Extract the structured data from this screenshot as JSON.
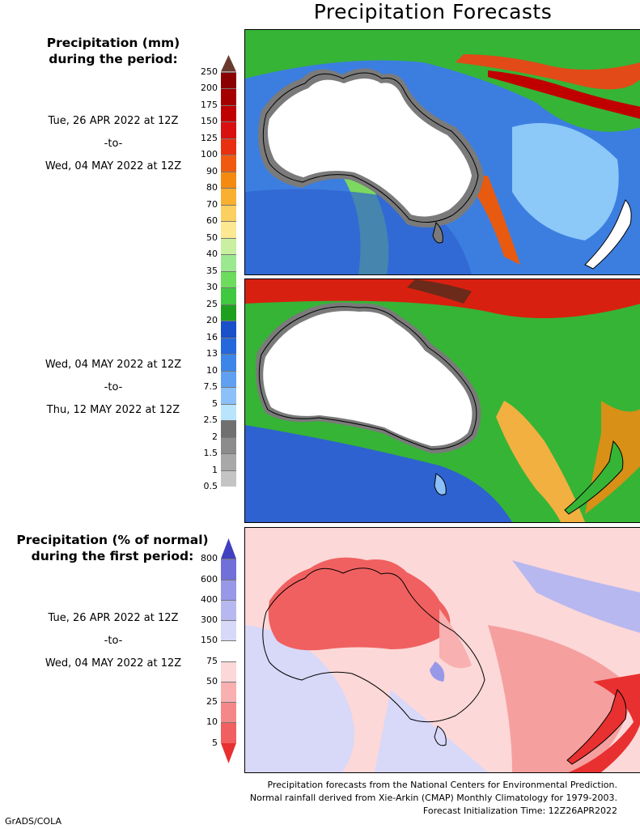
{
  "title": "Precipitation Forecasts",
  "panel_precip": {
    "heading_line1": "Precipitation (mm)",
    "heading_line2": "during the period:",
    "colorbar_labels": [
      "250",
      "200",
      "175",
      "150",
      "125",
      "100",
      "90",
      "80",
      "70",
      "60",
      "50",
      "40",
      "35",
      "30",
      "25",
      "20",
      "16",
      "13",
      "10",
      "7.5",
      "5",
      "2.5",
      "2",
      "1.5",
      "1",
      "0.5"
    ],
    "colorbar_colors": [
      "#6b3a2e",
      "#8b0000",
      "#a50000",
      "#c00000",
      "#d81010",
      "#e83010",
      "#f05a10",
      "#f58a10",
      "#f9b030",
      "#fbd060",
      "#fbe890",
      "#c8f0a0",
      "#9ce890",
      "#6cdc5c",
      "#40c840",
      "#1ea01e",
      "#1a50c8",
      "#2468dc",
      "#3c86e8",
      "#60a0f0",
      "#8cc0f8",
      "#b8e4fc",
      "#707070",
      "#8c8c8c",
      "#a8a8a8",
      "#c4c4c4",
      "#ffffff"
    ]
  },
  "period1": {
    "start": "Tue, 26 APR 2022 at 12Z",
    "sep": "-to-",
    "end": "Wed, 04 MAY 2022 at 12Z"
  },
  "period2": {
    "start": "Wed, 04 MAY 2022 at 12Z",
    "sep": "-to-",
    "end": "Thu, 12 MAY 2022 at 12Z"
  },
  "panel_pct": {
    "heading_line1": "Precipitation (% of normal)",
    "heading_line2": "during the first period:",
    "colorbar_labels": [
      "800",
      "600",
      "400",
      "300",
      "150",
      "75",
      "50",
      "25",
      "10",
      "5"
    ],
    "colorbar_colors": [
      "#4040c0",
      "#7070d8",
      "#9898e8",
      "#b8b8f0",
      "#d8d8f8",
      "#ffffff",
      "#fcd8d8",
      "#f8b0b0",
      "#f48888",
      "#f06060",
      "#e83030"
    ]
  },
  "period3": {
    "start": "Tue, 26 APR 2022 at 12Z",
    "sep": "-to-",
    "end": "Wed, 04 MAY 2022 at 12Z"
  },
  "footer": {
    "line1": "Precipitation forecasts from the National Centers for Environmental Prediction.",
    "line2": "Normal rainfall derived from Xie-Arkin (CMAP) Monthly Climatology for 1979-2003.",
    "line3": "Forecast Initialization Time: 12Z26APR2022"
  },
  "credit": "GrADS/COLA"
}
